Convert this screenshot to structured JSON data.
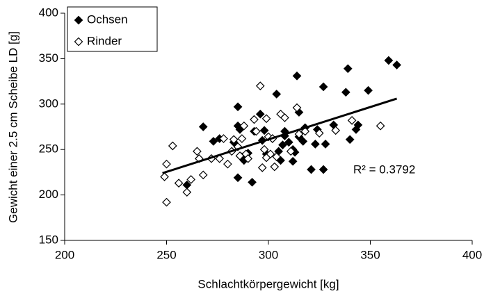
{
  "chart_data": {
    "type": "scatter",
    "xlabel": "Schlachtkörpergewicht [kg]",
    "ylabel": "Gewicht einer 2.5 cm Scheibe LD [g]",
    "xlim": [
      200,
      400
    ],
    "xticks": [
      200,
      250,
      300,
      350,
      400
    ],
    "ylim": [
      150,
      400
    ],
    "yticks": [
      150,
      200,
      250,
      300,
      350,
      400
    ],
    "legend": "upper left",
    "annotation": "R² = 0.3792",
    "trendline": {
      "x": [
        248,
        363
      ],
      "y": [
        224,
        306
      ],
      "color": "#000000"
    },
    "series": [
      {
        "name": "Ochsen",
        "color": "#000000",
        "filled": true,
        "x": [
          260,
          268,
          273,
          276,
          283,
          285,
          285,
          285,
          286,
          287,
          288,
          290,
          292,
          293,
          296,
          297,
          298,
          299,
          302,
          304,
          305,
          306,
          307,
          308,
          308,
          310,
          312,
          312,
          313,
          314,
          315,
          315,
          317,
          318,
          321,
          323,
          324,
          327,
          327,
          328,
          332,
          338,
          339,
          340,
          343,
          344,
          349,
          359,
          363
        ],
        "values": [
          211,
          275,
          259,
          262,
          258,
          219,
          297,
          276,
          272,
          242,
          238,
          246,
          214,
          270,
          289,
          260,
          271,
          245,
          262,
          311,
          248,
          238,
          255,
          270,
          265,
          258,
          250,
          237,
          247,
          331,
          264,
          291,
          259,
          274,
          228,
          256,
          272,
          228,
          319,
          256,
          277,
          313,
          339,
          261,
          272,
          277,
          315,
          348,
          343
        ]
      },
      {
        "name": "Rinder",
        "color": "#000000",
        "filled": false,
        "x": [
          249,
          250,
          250,
          253,
          256,
          260,
          262,
          265,
          266,
          268,
          272,
          276,
          278,
          280,
          282,
          283,
          285,
          286,
          287,
          288,
          289,
          290,
          293,
          294,
          296,
          297,
          298,
          299,
          300,
          301,
          302,
          303,
          304,
          306,
          308,
          311,
          314,
          315,
          318,
          325,
          333,
          341,
          355,
          299
        ],
        "values": [
          220,
          234,
          192,
          254,
          213,
          203,
          217,
          248,
          240,
          222,
          240,
          240,
          262,
          234,
          248,
          261,
          253,
          243,
          262,
          276,
          245,
          240,
          283,
          270,
          320,
          230,
          250,
          284,
          264,
          245,
          262,
          231,
          242,
          289,
          285,
          248,
          296,
          267,
          270,
          268,
          271,
          282,
          276,
          241
        ]
      }
    ]
  }
}
